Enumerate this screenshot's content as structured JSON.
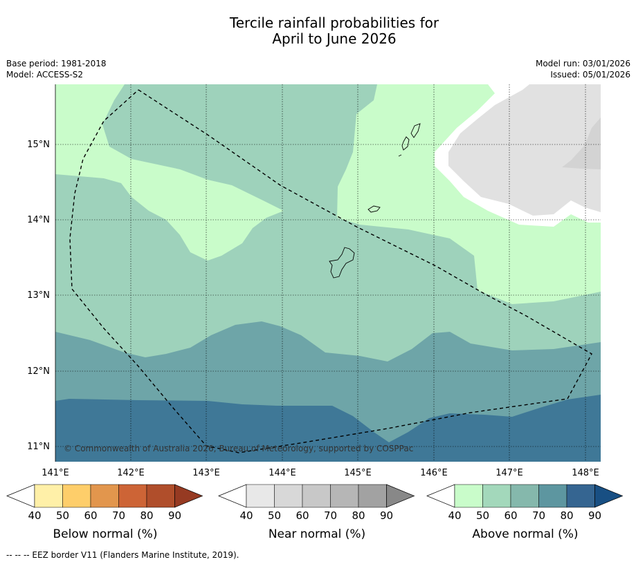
{
  "title": {
    "line1": "Tercile rainfall probabilities for",
    "line2": "April to June 2026"
  },
  "meta": {
    "base_period": "Base period: 1981-2018",
    "model": "Model: ACCESS-S2",
    "model_run": "Model run: 03/01/2026",
    "issued": "Issued: 05/01/2026"
  },
  "map": {
    "lat_labels": [
      "15°N",
      "14°N",
      "13°N",
      "12°N",
      "11°N"
    ],
    "lon_labels": [
      "141°E",
      "142°E",
      "143°E",
      "144°E",
      "145°E",
      "146°E",
      "147°E",
      "148°E"
    ],
    "copyright": "© Commonwealth of Australia 2026, Bureau of Meteorology, supported by COSPPac"
  },
  "colorbars": [
    {
      "name": "below",
      "label": "Below normal (%)",
      "ticks": [
        "40",
        "50",
        "60",
        "70",
        "80",
        "90"
      ],
      "colors": [
        "#ffffff",
        "#fff0a8",
        "#fece6a",
        "#e2964d",
        "#cd6436",
        "#b04e2b",
        "#963a22"
      ]
    },
    {
      "name": "near",
      "label": "Near normal (%)",
      "ticks": [
        "40",
        "50",
        "60",
        "70",
        "80",
        "90"
      ],
      "colors": [
        "#ffffff",
        "#e8e8e8",
        "#d8d8d8",
        "#c8c8c8",
        "#b6b6b6",
        "#a2a2a2",
        "#888888"
      ]
    },
    {
      "name": "above",
      "label": "Above normal (%)",
      "ticks": [
        "40",
        "50",
        "60",
        "70",
        "80",
        "90"
      ],
      "colors": [
        "#ffffff",
        "#c9fcca",
        "#a3d8bb",
        "#85b8ac",
        "#5d96a0",
        "#356591",
        "#184f83"
      ]
    }
  ],
  "footer": "--  --  -- EEZ border V11 (Flanders Marine Institute, 2019)."
}
